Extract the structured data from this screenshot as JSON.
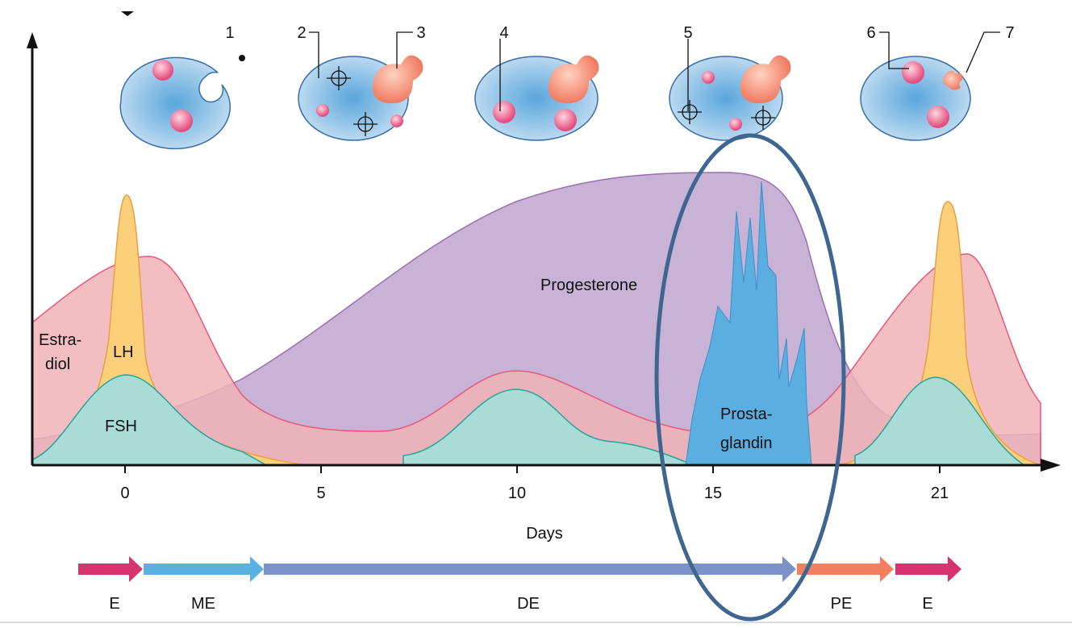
{
  "callouts": [
    "1",
    "2",
    "3",
    "4",
    "5",
    "6",
    "7"
  ],
  "curve_labels": {
    "estradiol": [
      "Estra-",
      "diol"
    ],
    "lh": "LH",
    "fsh": "FSH",
    "progesterone": "Progesterone",
    "prostaglandin": [
      "Prosta-",
      "glandin"
    ]
  },
  "x_axis": {
    "ticks": [
      "0",
      "5",
      "10",
      "15",
      "21"
    ],
    "label": "Days"
  },
  "phases": [
    "E",
    "ME",
    "DE",
    "PE",
    "E"
  ]
}
